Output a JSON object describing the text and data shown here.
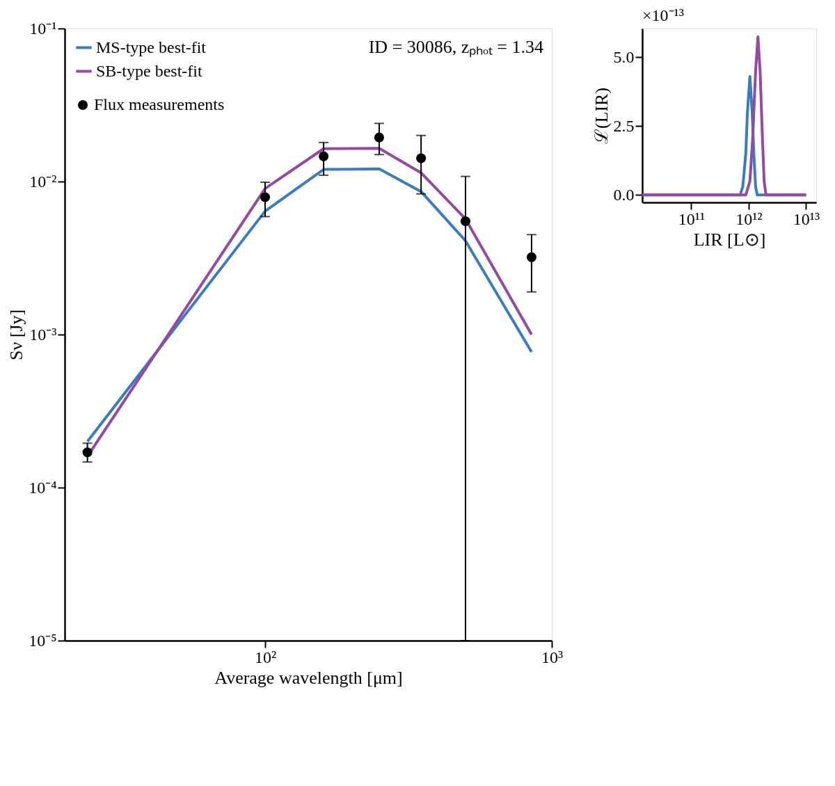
{
  "chart_data": [
    {
      "type": "line",
      "xlabel": "Average wavelength [μm]",
      "ylabel": "Sν [Jy]",
      "log": "xy",
      "legend": "top left",
      "grid": false,
      "annotations": [
        "ID = 30086, zₚₕₒₜ = 1.34"
      ],
      "xlim": [
        20,
        1000
      ],
      "xticks": [
        {
          "value": 100,
          "label": "10²"
        },
        {
          "value": 1000,
          "label": "10³"
        }
      ],
      "ylim": [
        1e-05,
        0.1
      ],
      "yticks": [
        {
          "value": 1e-05,
          "label": "10⁻⁵"
        },
        {
          "value": 0.0001,
          "label": "10⁻⁴"
        },
        {
          "value": 0.001,
          "label": "10⁻³"
        },
        {
          "value": 0.01,
          "label": "10⁻²"
        },
        {
          "value": 0.1,
          "label": "10⁻¹"
        }
      ],
      "x": [
        24,
        100,
        160,
        250,
        350,
        500,
        850
      ],
      "series": [
        {
          "name": "MS-type best-fit",
          "color": "#3a7dbf",
          "values": [
            0.0002,
            0.0064,
            0.012,
            0.0121,
            0.0086,
            0.0041,
            0.00077
          ]
        },
        {
          "name": "SB-type best-fit",
          "color": "#9449a3",
          "values": [
            0.00016,
            0.009,
            0.0164,
            0.0165,
            0.0114,
            0.0057,
            0.001
          ]
        },
        {
          "name": "Flux measurements",
          "type": "scatter",
          "color": "#000000",
          "marker": "circle",
          "values": [
            0.00017,
            0.0079,
            0.0146,
            0.0194,
            0.0142,
            0.0055,
            0.0032
          ],
          "errors": [
            [
              0.000147,
              0.000195
            ],
            [
              0.0059,
              0.0099
            ],
            [
              0.011,
              0.018
            ],
            [
              0.015,
              0.024
            ],
            [
              0.0083,
              0.02
            ],
            [
              1e-05,
              0.0108
            ],
            [
              0.0019,
              0.0045
            ]
          ]
        }
      ]
    },
    {
      "type": "line",
      "xlabel": "LIR [L⊙]",
      "ylabel": "ℒ(LIR)",
      "log": "x",
      "legend": false,
      "grid": false,
      "annotations": [
        "×10⁻¹³"
      ],
      "xlim": [
        14000000000.0,
        15000000000000.0
      ],
      "xticks": [
        {
          "value": 100000000000.0,
          "label": "10¹¹"
        },
        {
          "value": 1000000000000.0,
          "label": "10¹²"
        },
        {
          "value": 10000000000000.0,
          "label": "10¹³"
        }
      ],
      "ylim": [
        -0.27,
        6.04
      ],
      "yticks": [
        {
          "value": 0,
          "label": "0.0"
        },
        {
          "value": 2.5,
          "label": "2.5"
        },
        {
          "value": 5,
          "label": "5.0"
        }
      ],
      "series": [
        {
          "color": "#3a7dbf",
          "x": [
            14000000000.0,
            710000000000.0,
            790000000000.0,
            890000000000.0,
            950000000000.0,
            1050000000000.0,
            1150000000000.0,
            1230000000000.0,
            1320000000000.0,
            1410000000000.0,
            10000000000000.0
          ],
          "values": [
            0,
            0,
            0.3,
            1.5,
            3.0,
            4.3,
            3.0,
            1.5,
            0.3,
            0,
            0
          ]
        },
        {
          "color": "#9449a3",
          "x": [
            14000000000.0,
            890000000000.0,
            1050000000000.0,
            1170000000000.0,
            1320000000000.0,
            1450000000000.0,
            1580000000000.0,
            1740000000000.0,
            1860000000000.0,
            2000000000000.0,
            10000000000000.0
          ],
          "values": [
            0,
            0,
            0.5,
            2.0,
            4.5,
            5.74,
            4.5,
            2.0,
            0.5,
            0,
            0
          ]
        }
      ]
    }
  ]
}
